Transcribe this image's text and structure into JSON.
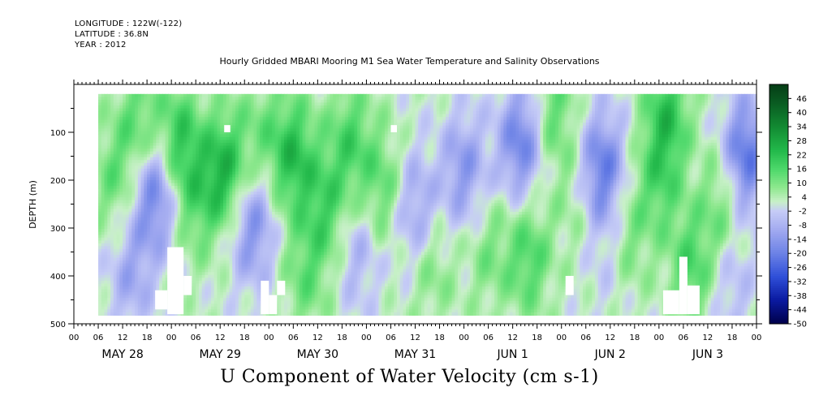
{
  "header": {
    "longitude": "LONGITUDE : 122W(-122)",
    "latitude": "LATITUDE : 36.8N",
    "year": "YEAR : 2012"
  },
  "chart_data": {
    "type": "heatmap",
    "title": "Hourly Gridded MBARI Mooring M1 Sea Water Temperature and Salinity Observations",
    "bottom_title": "U Component of Water Velocity (cm s-1)",
    "ylabel": "DEPTH (m)",
    "ylim": [
      500,
      0
    ],
    "y_ticks": [
      100,
      200,
      300,
      400,
      500
    ],
    "x_hour_labels": [
      "00",
      "06",
      "12",
      "18",
      "00",
      "06",
      "12",
      "18",
      "00",
      "06",
      "12",
      "18",
      "00",
      "06",
      "12",
      "18",
      "00",
      "06",
      "12",
      "18",
      "00",
      "06",
      "12",
      "18",
      "00",
      "06",
      "12",
      "18",
      "00"
    ],
    "x_day_labels": [
      "MAY 28",
      "MAY 29",
      "MAY 30",
      "MAY 31",
      "JUN  1",
      "JUN  2",
      "JUN  3"
    ],
    "colorbar": {
      "labels": [
        "46",
        "40",
        "34",
        "28",
        "22",
        "16",
        "10",
        "4",
        "-2",
        "-8",
        "-14",
        "-20",
        "-26",
        "-32",
        "-38",
        "-44",
        "-50"
      ],
      "range": [
        -50,
        52
      ],
      "colors": [
        {
          "v": -50,
          "c": "#00004a"
        },
        {
          "v": -40,
          "c": "#0a1aa0"
        },
        {
          "v": -30,
          "c": "#2f4fd8"
        },
        {
          "v": -20,
          "c": "#6c82e6"
        },
        {
          "v": -10,
          "c": "#a2aaf0"
        },
        {
          "v": -2,
          "c": "#c6ccf6"
        },
        {
          "v": 2,
          "c": "#c8f0c8"
        },
        {
          "v": 8,
          "c": "#8ee88e"
        },
        {
          "v": 16,
          "c": "#4cd86a"
        },
        {
          "v": 24,
          "c": "#22b84a"
        },
        {
          "v": 34,
          "c": "#128a32"
        },
        {
          "v": 44,
          "c": "#0a5c22"
        },
        {
          "v": 52,
          "c": "#063d16"
        }
      ]
    },
    "data_start_hour": 6,
    "data_end_hour": 168,
    "depth_range": [
      20,
      480
    ],
    "features": [
      {
        "hour": 10,
        "depth": 200,
        "amp": 10
      },
      {
        "hour": 20,
        "depth": 230,
        "amp": -22
      },
      {
        "hour": 14,
        "depth": 400,
        "amp": -12
      },
      {
        "hour": 16,
        "depth": 80,
        "amp": 12
      },
      {
        "hour": 26,
        "depth": 120,
        "amp": 18
      },
      {
        "hour": 30,
        "depth": 250,
        "amp": 10
      },
      {
        "hour": 37,
        "depth": 180,
        "amp": 22
      },
      {
        "hour": 44,
        "depth": 300,
        "amp": -18
      },
      {
        "hour": 46,
        "depth": 100,
        "amp": 8
      },
      {
        "hour": 54,
        "depth": 150,
        "amp": 20
      },
      {
        "hour": 57,
        "depth": 400,
        "amp": 10
      },
      {
        "hour": 62,
        "depth": 260,
        "amp": 14
      },
      {
        "hour": 68,
        "depth": 120,
        "amp": 14
      },
      {
        "hour": 70,
        "depth": 350,
        "amp": -10
      },
      {
        "hour": 76,
        "depth": 220,
        "amp": 12
      },
      {
        "hour": 84,
        "depth": 260,
        "amp": -14
      },
      {
        "hour": 88,
        "depth": 380,
        "amp": 8
      },
      {
        "hour": 96,
        "depth": 180,
        "amp": -16
      },
      {
        "hour": 102,
        "depth": 350,
        "amp": 8
      },
      {
        "hour": 110,
        "depth": 120,
        "amp": -22
      },
      {
        "hour": 112,
        "depth": 360,
        "amp": 14
      },
      {
        "hour": 118,
        "depth": 60,
        "amp": 12
      },
      {
        "hour": 124,
        "depth": 240,
        "amp": 6
      },
      {
        "hour": 130,
        "depth": 180,
        "amp": -24
      },
      {
        "hour": 132,
        "depth": 360,
        "amp": -6
      },
      {
        "hour": 136,
        "depth": 320,
        "amp": 10
      },
      {
        "hour": 144,
        "depth": 200,
        "amp": 12
      },
      {
        "hour": 146,
        "depth": 60,
        "amp": 18
      },
      {
        "hour": 152,
        "depth": 380,
        "amp": 14
      },
      {
        "hour": 160,
        "depth": 240,
        "amp": 12
      },
      {
        "hour": 165,
        "depth": 150,
        "amp": -26
      },
      {
        "hour": 162,
        "depth": 420,
        "amp": -8
      }
    ],
    "gaps": [
      {
        "h0": 23,
        "h1": 27,
        "d0": 340,
        "d1": 480
      },
      {
        "h0": 27,
        "h1": 29,
        "d0": 400,
        "d1": 440
      },
      {
        "h0": 20,
        "h1": 23,
        "d0": 430,
        "d1": 470
      },
      {
        "h0": 37,
        "h1": 38.5,
        "d0": 85,
        "d1": 100
      },
      {
        "h0": 46,
        "h1": 48,
        "d0": 410,
        "d1": 480
      },
      {
        "h0": 48,
        "h1": 50,
        "d0": 440,
        "d1": 480
      },
      {
        "h0": 50,
        "h1": 52,
        "d0": 410,
        "d1": 440
      },
      {
        "h0": 78,
        "h1": 79.5,
        "d0": 85,
        "d1": 100
      },
      {
        "h0": 121,
        "h1": 123,
        "d0": 400,
        "d1": 440
      },
      {
        "h0": 145,
        "h1": 149,
        "d0": 430,
        "d1": 480
      },
      {
        "h0": 149,
        "h1": 151,
        "d0": 360,
        "d1": 480
      },
      {
        "h0": 151,
        "h1": 154,
        "d0": 420,
        "d1": 480
      }
    ]
  }
}
